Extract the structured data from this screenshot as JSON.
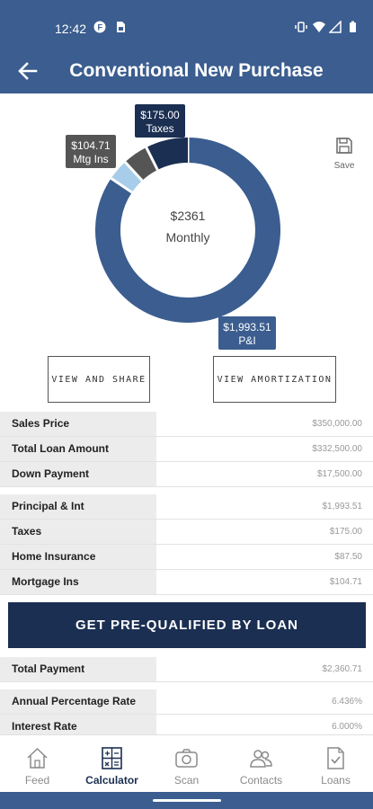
{
  "status": {
    "time": "12:42"
  },
  "header": {
    "title": "Conventional New Purchase"
  },
  "chart_data": {
    "type": "pie",
    "center_value": "$2361",
    "center_label": "Monthly",
    "slices": [
      {
        "value": 1993.51,
        "label": "$1,993.51",
        "sub": "P&I",
        "color": "#3b5d8f"
      },
      {
        "value": 87.5,
        "label": "$87.50",
        "sub": "",
        "color": "#a7cdea"
      },
      {
        "value": 104.71,
        "label": "$104.71",
        "sub": "Mtg Ins",
        "color": "#555555"
      },
      {
        "value": 175.0,
        "label": "$175.00",
        "sub": "Taxes",
        "color": "#1b2f52"
      }
    ]
  },
  "save": {
    "label": "Save"
  },
  "actions": {
    "share": "VIEW AND SHARE",
    "amortization": "VIEW AMORTIZATION"
  },
  "loan_rows": [
    {
      "key": "Sales Price",
      "value": "$350,000.00"
    },
    {
      "key": "Total Loan Amount",
      "value": "$332,500.00"
    },
    {
      "key": "Down Payment",
      "value": "$17,500.00"
    }
  ],
  "payment_rows": [
    {
      "key": "Principal & Int",
      "value": "$1,993.51"
    },
    {
      "key": "Taxes",
      "value": "$175.00"
    },
    {
      "key": "Home Insurance",
      "value": "$87.50"
    },
    {
      "key": "Mortgage Ins",
      "value": "$104.71"
    }
  ],
  "cta": {
    "label": "GET PRE-QUALIFIED BY LOAN"
  },
  "total_rows": [
    {
      "key": "Total Payment",
      "value": "$2,360.71"
    }
  ],
  "rate_rows": [
    {
      "key": "Annual Percentage Rate",
      "value": "6.436%"
    },
    {
      "key": "Interest Rate",
      "value": "6.000%"
    }
  ],
  "tabs": [
    {
      "label": "Feed",
      "icon": "home-icon"
    },
    {
      "label": "Calculator",
      "icon": "calculator-icon"
    },
    {
      "label": "Scan",
      "icon": "camera-icon"
    },
    {
      "label": "Contacts",
      "icon": "contacts-icon"
    },
    {
      "label": "Loans",
      "icon": "document-check-icon"
    }
  ]
}
